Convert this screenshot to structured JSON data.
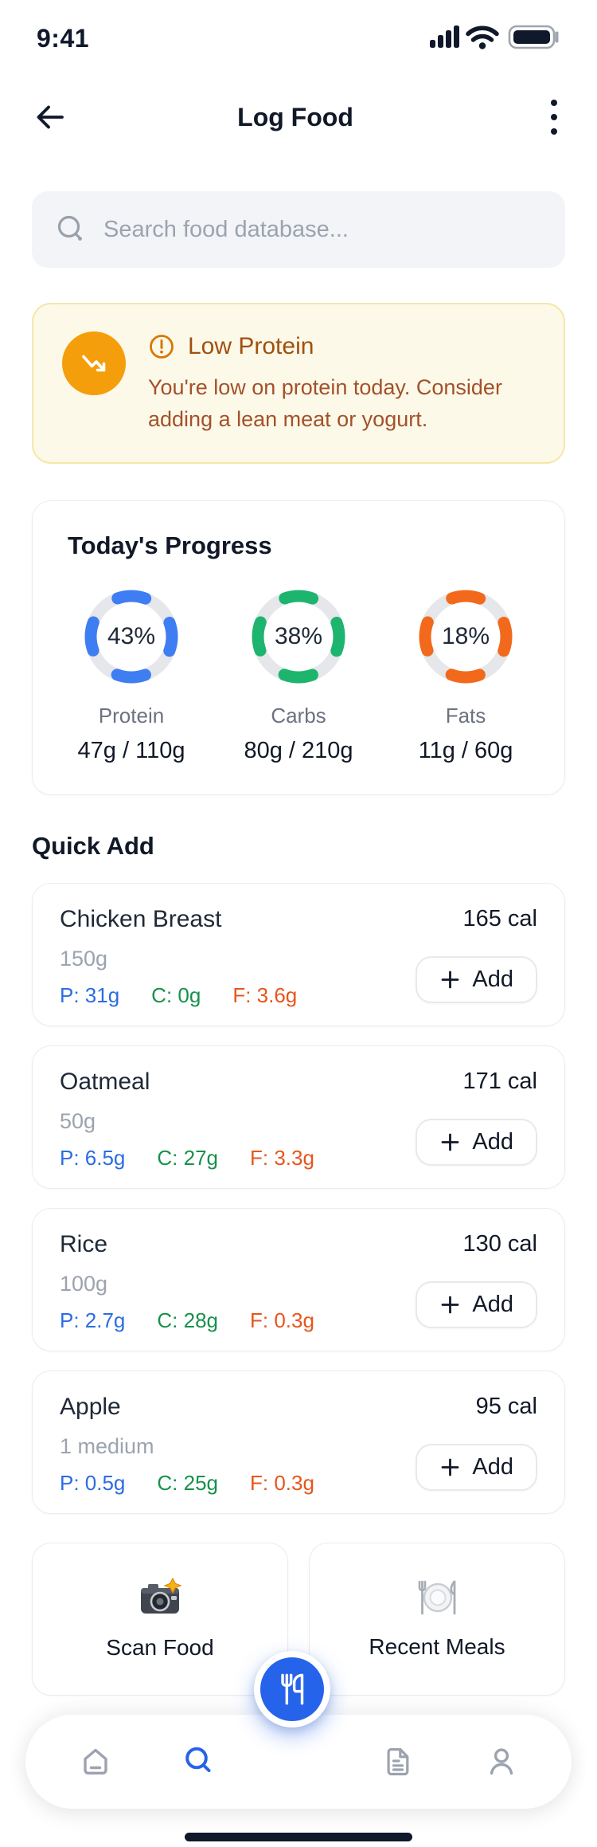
{
  "status_bar": {
    "time": "9:41"
  },
  "header": {
    "title": "Log Food"
  },
  "search": {
    "placeholder": "Search food database..."
  },
  "alert": {
    "title": "Low Protein",
    "message": "You're low on protein today. Consider adding a lean meat or yogurt."
  },
  "progress": {
    "title": "Today's Progress",
    "rings": [
      {
        "label": "Protein",
        "percent": 43,
        "percent_label": "43%",
        "value": "47g / 110g",
        "color": "#3F7DF2"
      },
      {
        "label": "Carbs",
        "percent": 38,
        "percent_label": "38%",
        "value": "80g / 210g",
        "color": "#1DB56E"
      },
      {
        "label": "Fats",
        "percent": 18,
        "percent_label": "18%",
        "value": "11g / 60g",
        "color": "#F2691C"
      }
    ]
  },
  "quick_add": {
    "title": "Quick Add",
    "add_label": "Add",
    "items": [
      {
        "name": "Chicken Breast",
        "calories": "165 cal",
        "serving": "150g",
        "protein": "P: 31g",
        "carbs": "C: 0g",
        "fats": "F: 3.6g"
      },
      {
        "name": "Oatmeal",
        "calories": "171 cal",
        "serving": "50g",
        "protein": "P: 6.5g",
        "carbs": "C: 27g",
        "fats": "F: 3.3g"
      },
      {
        "name": "Rice",
        "calories": "130 cal",
        "serving": "100g",
        "protein": "P: 2.7g",
        "carbs": "C: 28g",
        "fats": "F: 0.3g"
      },
      {
        "name": "Apple",
        "calories": "95 cal",
        "serving": "1 medium",
        "protein": "P: 0.5g",
        "carbs": "C: 25g",
        "fats": "F: 0.3g"
      }
    ]
  },
  "shortcuts": [
    {
      "label": "Scan Food",
      "icon": "camera-icon"
    },
    {
      "label": "Recent Meals",
      "icon": "plate-cutlery-icon"
    }
  ],
  "nav": {
    "items": [
      {
        "icon": "home-icon",
        "active": false
      },
      {
        "icon": "search-icon",
        "active": true
      },
      {
        "icon": "document-icon",
        "active": false
      },
      {
        "icon": "profile-icon",
        "active": false
      }
    ],
    "fab_icon": "utensils-icon"
  },
  "colors": {
    "accent": "#2563EB",
    "protein": "#2B6CE4",
    "carbs": "#17914B",
    "fats": "#E8551B",
    "ring_track": "#E5E7EB",
    "alert_bg": "#FCF9E9",
    "alert_border": "#F5E7A8",
    "alert_icon_bg": "#F59E0B",
    "alert_title": "#A0500E",
    "alert_text": "#A3512A",
    "inactive_icon": "#9CA3AF",
    "dark_icon": "#10182B"
  }
}
